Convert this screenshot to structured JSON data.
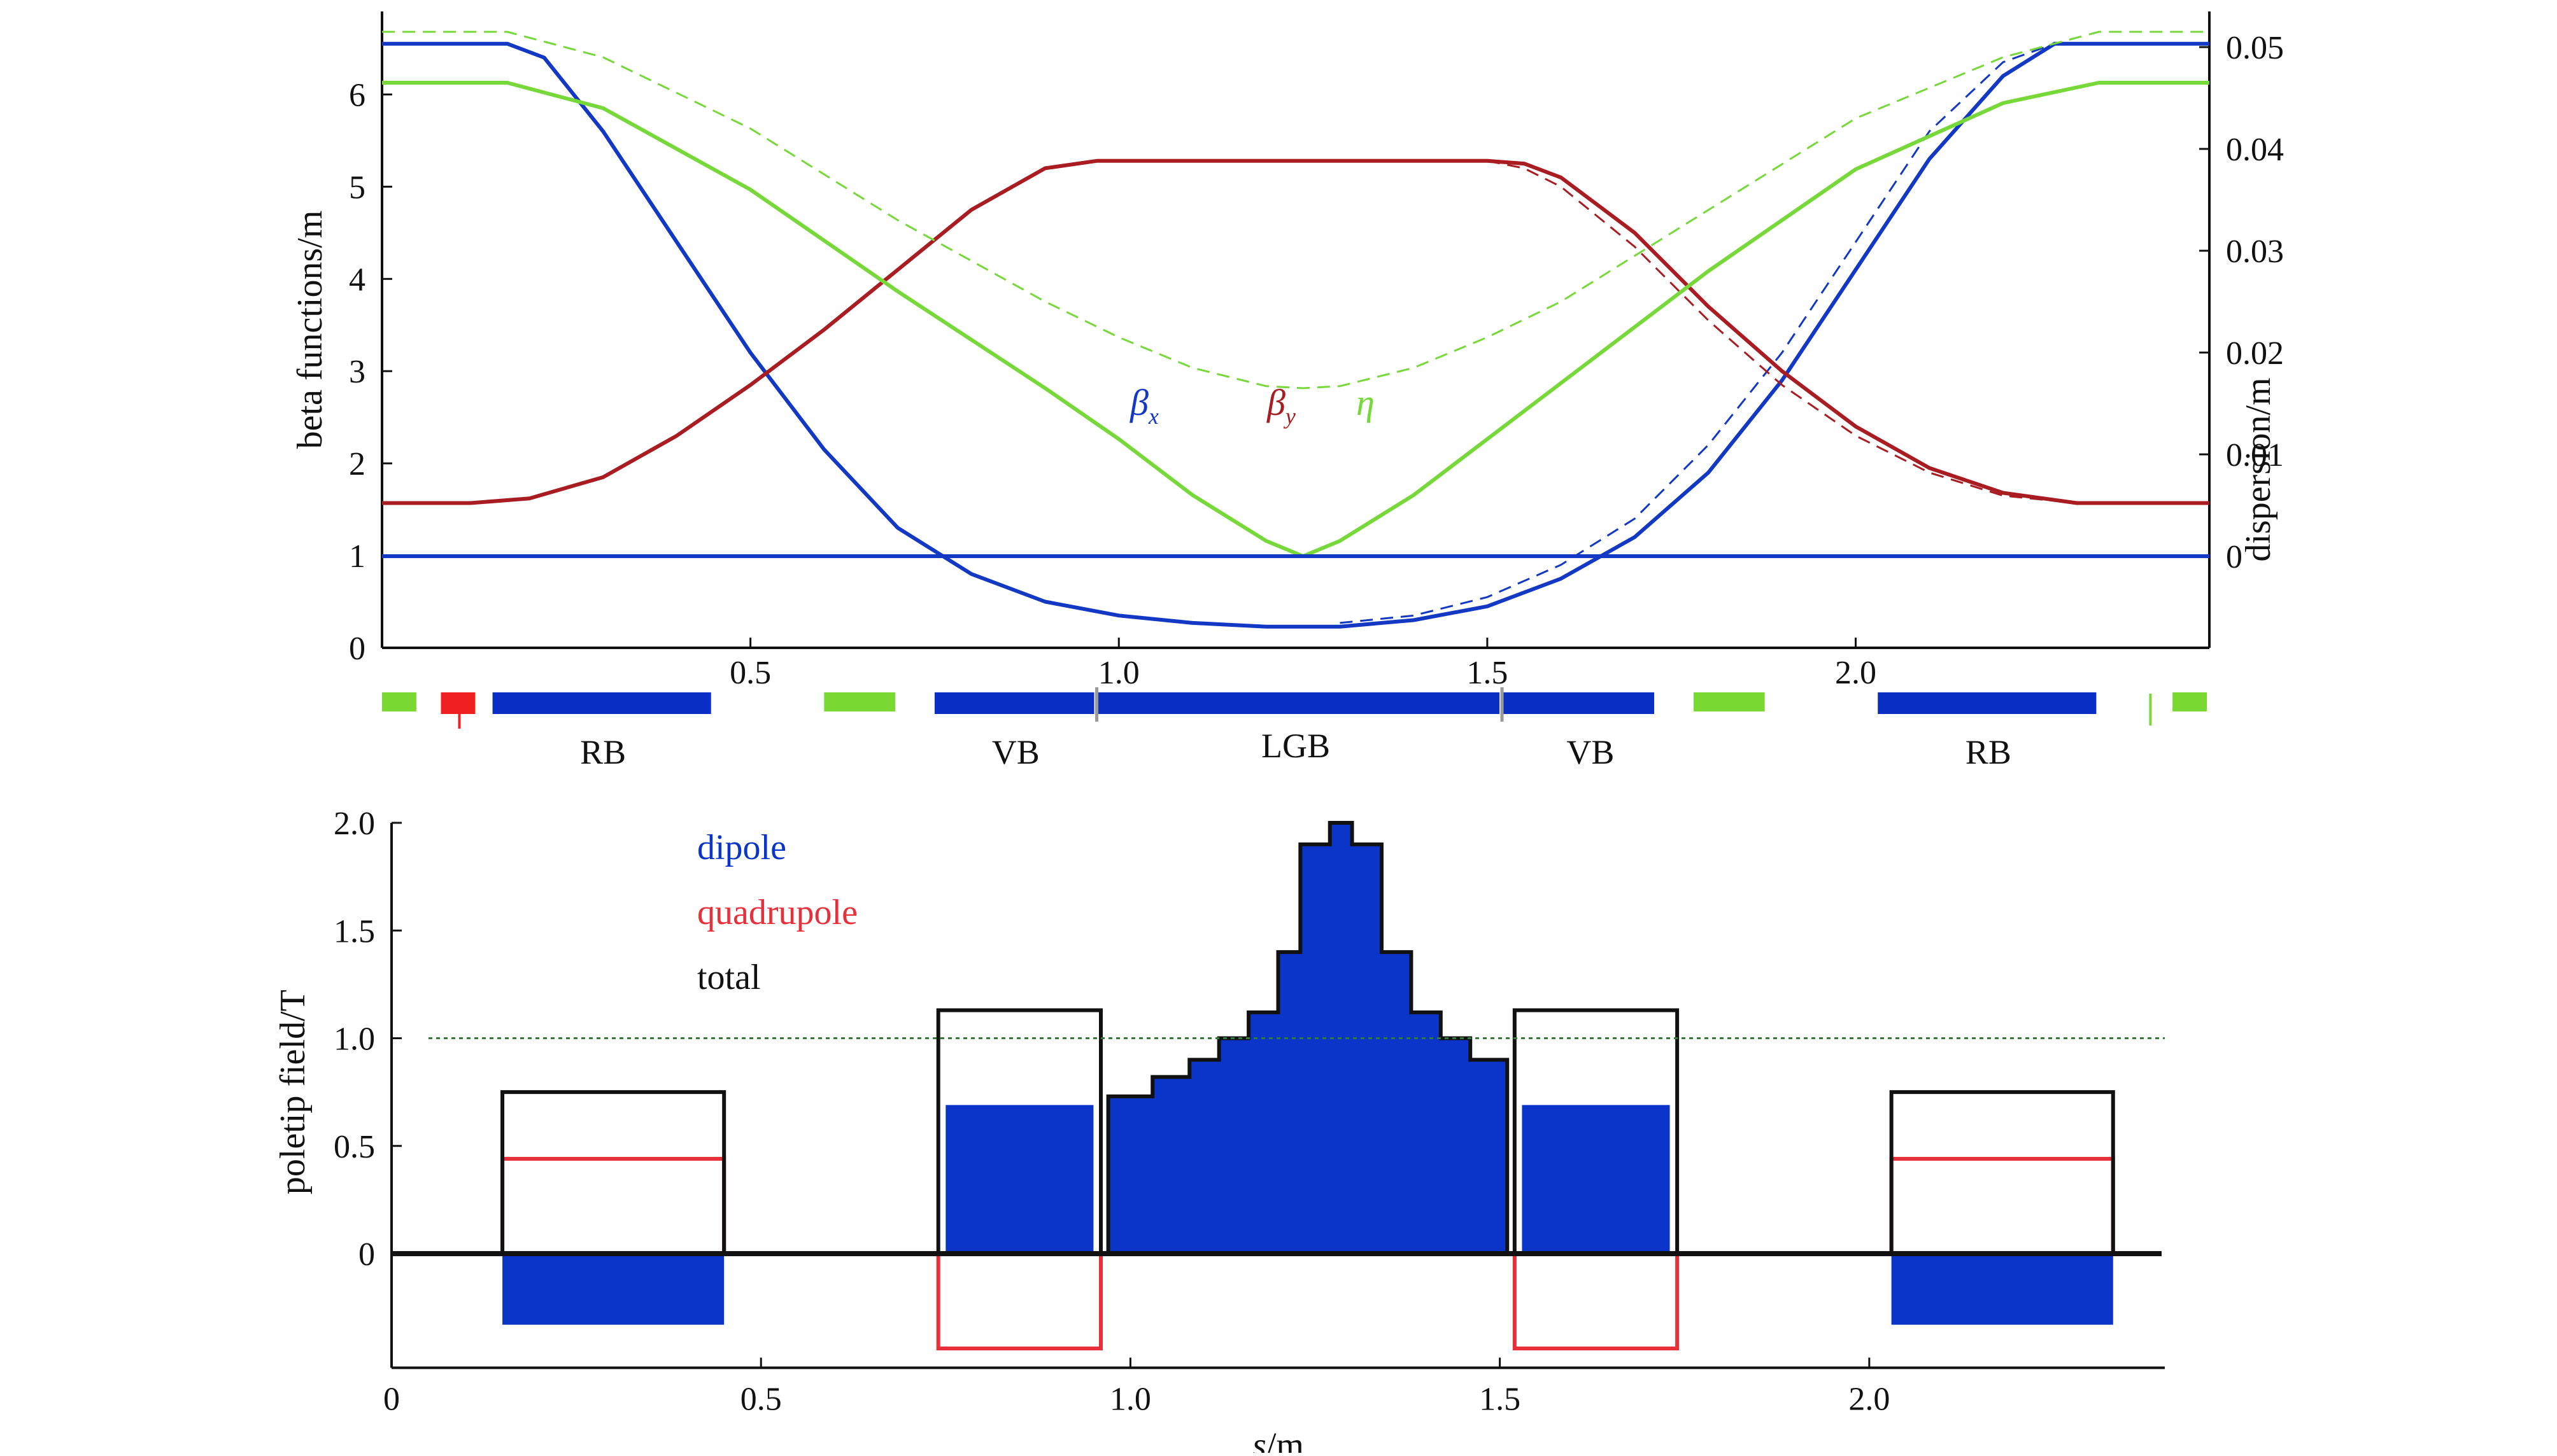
{
  "colors": {
    "beta_x": "#1238c4",
    "beta_y": "#a81c22",
    "eta": "#77d83a",
    "dipole": "#0a35c8",
    "quadrupole": "#e8303a",
    "total": "#111111",
    "element_green": "#7ad832",
    "element_red": "#ee2020",
    "element_blue": "#0a2fc4",
    "gridline": "#2e7d32"
  },
  "chart_data": [
    {
      "type": "line",
      "xlim": [
        0.0,
        2.48
      ],
      "ylim": [
        0,
        6.9
      ],
      "y2lim": [
        -0.009,
        0.0535
      ],
      "ylabel": "beta functions/m",
      "y2label": "dispersion/m",
      "x_ticks": [
        "0.5",
        "1.0",
        "1.5",
        "2.0"
      ],
      "y_ticks": [
        "0",
        "1",
        "2",
        "3",
        "4",
        "5",
        "6"
      ],
      "y2_ticks": [
        "0",
        "0.01",
        "0.02",
        "0.03",
        "0.04",
        "0.05"
      ],
      "labels": [
        "β",
        "β",
        "η"
      ],
      "label_subscripts": [
        "x",
        "y",
        ""
      ],
      "grid": false,
      "series": [
        {
          "key": "beta_x",
          "axis": "left",
          "style": "solid",
          "x": [
            0.0,
            0.17,
            0.22,
            0.3,
            0.4,
            0.5,
            0.6,
            0.7,
            0.8,
            0.9,
            1.0,
            1.1,
            1.2,
            1.3,
            1.4,
            1.5,
            1.6,
            1.7,
            1.8,
            1.9,
            2.0,
            2.1,
            2.2,
            2.27,
            2.3,
            2.48
          ],
          "y": [
            6.55,
            6.55,
            6.4,
            5.6,
            4.4,
            3.2,
            2.15,
            1.3,
            0.8,
            0.5,
            0.35,
            0.27,
            0.23,
            0.23,
            0.3,
            0.45,
            0.75,
            1.2,
            1.9,
            2.9,
            4.1,
            5.3,
            6.2,
            6.55,
            6.55,
            6.55
          ]
        },
        {
          "key": "beta_x_design",
          "axis": "left",
          "style": "dashed",
          "x": [
            1.3,
            1.4,
            1.5,
            1.6,
            1.7,
            1.8,
            1.9,
            2.0,
            2.1,
            2.2,
            2.27,
            2.3
          ],
          "y": [
            0.27,
            0.35,
            0.55,
            0.9,
            1.4,
            2.2,
            3.2,
            4.4,
            5.6,
            6.35,
            6.55,
            6.55
          ]
        },
        {
          "key": "beta_y",
          "axis": "left",
          "style": "solid",
          "x": [
            0.0,
            0.12,
            0.2,
            0.3,
            0.4,
            0.5,
            0.6,
            0.7,
            0.8,
            0.9,
            0.97,
            1.5,
            1.55,
            1.6,
            1.7,
            1.8,
            1.9,
            2.0,
            2.1,
            2.2,
            2.3,
            2.48
          ],
          "y": [
            1.57,
            1.57,
            1.62,
            1.85,
            2.3,
            2.85,
            3.45,
            4.1,
            4.75,
            5.2,
            5.28,
            5.28,
            5.25,
            5.1,
            4.5,
            3.7,
            3.0,
            2.4,
            1.95,
            1.68,
            1.57,
            1.57
          ]
        },
        {
          "key": "beta_y_design",
          "axis": "left",
          "style": "dashed",
          "x": [
            1.5,
            1.55,
            1.6,
            1.7,
            1.8,
            1.9,
            2.0,
            2.1,
            2.2,
            2.3
          ],
          "y": [
            5.28,
            5.2,
            5.0,
            4.35,
            3.55,
            2.85,
            2.3,
            1.9,
            1.65,
            1.57
          ]
        },
        {
          "key": "eta",
          "axis": "right",
          "style": "solid",
          "x": [
            0.0,
            0.17,
            0.3,
            0.5,
            0.7,
            0.9,
            1.0,
            1.1,
            1.2,
            1.25,
            1.3,
            1.4,
            1.5,
            1.6,
            1.8,
            2.0,
            2.2,
            2.33,
            2.48
          ],
          "y": [
            0.0465,
            0.0465,
            0.044,
            0.036,
            0.026,
            0.0165,
            0.0115,
            0.006,
            0.0015,
            0.0,
            0.0015,
            0.006,
            0.0115,
            0.017,
            0.028,
            0.038,
            0.0445,
            0.0465,
            0.0465
          ]
        },
        {
          "key": "eta_design",
          "axis": "right",
          "style": "dashed",
          "x": [
            0.0,
            0.17,
            0.3,
            0.5,
            0.7,
            0.9,
            1.0,
            1.1,
            1.2,
            1.25,
            1.3,
            1.4,
            1.5,
            1.6,
            1.8,
            2.0,
            2.2,
            2.33,
            2.48
          ],
          "y": [
            0.0515,
            0.0515,
            0.049,
            0.042,
            0.033,
            0.025,
            0.0215,
            0.0185,
            0.0167,
            0.0165,
            0.0167,
            0.0185,
            0.0215,
            0.025,
            0.034,
            0.043,
            0.049,
            0.0515,
            0.0515
          ]
        },
        {
          "key": "eta_zero",
          "axis": "right",
          "style": "solid",
          "x": [
            0.0,
            2.48
          ],
          "y": [
            0.0,
            0.0
          ]
        }
      ]
    },
    {
      "type": "area",
      "xlim": [
        0.0,
        2.4
      ],
      "ylim": [
        -0.45,
        2.05
      ],
      "xlabel": "s/m",
      "xlabel_italic": "s",
      "xlabel_rest": "/m",
      "ylabel": "poletip field/T",
      "x_ticks": [
        "0",
        "0.5",
        "1.0",
        "1.5",
        "2.0"
      ],
      "y_ticks": [
        "0",
        "0.5",
        "1.0",
        "1.5",
        "2.0"
      ],
      "legend": [
        "dipole",
        "quadrupole",
        "total"
      ],
      "reference_line": 1.0,
      "grid": false,
      "dipole_blocks": [
        {
          "x0": 0.15,
          "x1": 0.45,
          "value": -0.33
        },
        {
          "x0": 0.75,
          "x1": 0.95,
          "value": 0.69
        },
        {
          "x0": 1.53,
          "x1": 1.73,
          "value": 0.69
        },
        {
          "x0": 2.03,
          "x1": 2.33,
          "value": -0.33
        }
      ],
      "quadrupole_blocks": [
        {
          "x0": 0.15,
          "x1": 0.45,
          "value": 0.44
        },
        {
          "x0": 0.74,
          "x1": 0.96,
          "value": -0.44
        },
        {
          "x0": 1.52,
          "x1": 1.74,
          "value": -0.44
        },
        {
          "x0": 2.03,
          "x1": 2.33,
          "value": 0.44
        }
      ],
      "total_blocks": [
        {
          "x0": 0.15,
          "x1": 0.45,
          "value": 0.75
        },
        {
          "x0": 0.74,
          "x1": 0.96,
          "value": 1.13
        },
        {
          "x0": 1.52,
          "x1": 1.74,
          "value": 1.13
        },
        {
          "x0": 2.03,
          "x1": 2.33,
          "value": 0.75
        }
      ],
      "lgb_profile": {
        "x": [
          0.97,
          1.03,
          1.08,
          1.12,
          1.16,
          1.2,
          1.23,
          1.27,
          1.3,
          1.34,
          1.38,
          1.42,
          1.46,
          1.51
        ],
        "y": [
          0.73,
          0.82,
          0.9,
          1.0,
          1.12,
          1.4,
          1.9,
          2.0,
          1.9,
          1.4,
          1.12,
          1.0,
          0.9,
          0.82
        ]
      }
    }
  ],
  "lattice": {
    "elements": [
      {
        "x0": 0.0,
        "x1": 0.05,
        "color": "green"
      },
      {
        "x0": 0.08,
        "x1": 0.13,
        "color": "red"
      },
      {
        "x0": 0.15,
        "x1": 0.45,
        "color": "blue"
      },
      {
        "x0": 0.6,
        "x1": 0.7,
        "color": "green"
      },
      {
        "x0": 0.75,
        "x1": 0.97,
        "color": "blue"
      },
      {
        "x0": 0.97,
        "x1": 1.52,
        "color": "blue"
      },
      {
        "x0": 1.52,
        "x1": 1.73,
        "color": "blue"
      },
      {
        "x0": 1.78,
        "x1": 1.88,
        "color": "green"
      },
      {
        "x0": 2.03,
        "x1": 2.33,
        "color": "blue"
      },
      {
        "x0": 2.43,
        "x1": 2.48,
        "color": "green"
      }
    ],
    "labels": [
      {
        "text": "RB",
        "x": 0.3
      },
      {
        "text": "VB",
        "x": 0.86
      },
      {
        "text": "LGB",
        "x": 1.24
      },
      {
        "text": "VB",
        "x": 1.64
      },
      {
        "text": "RB",
        "x": 2.18
      }
    ]
  }
}
